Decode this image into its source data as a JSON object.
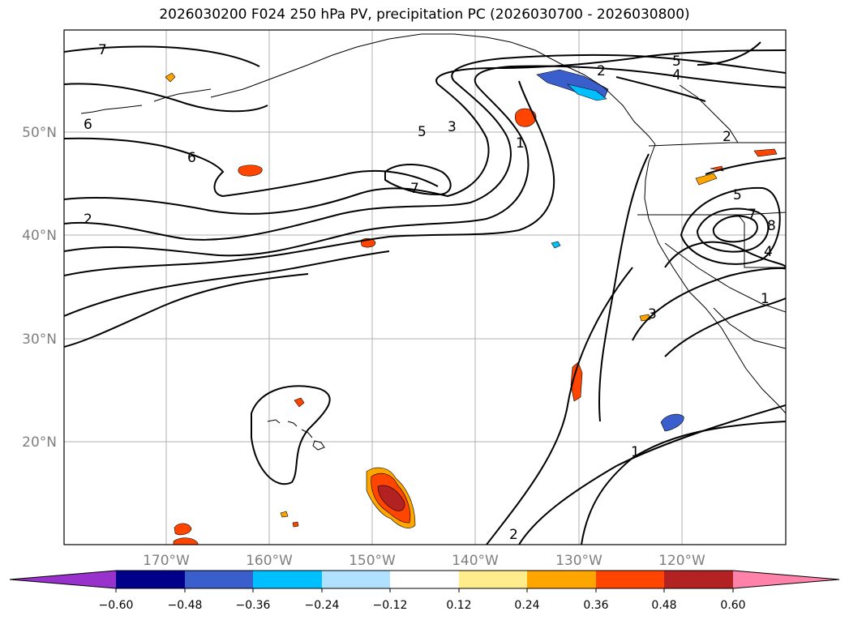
{
  "title": "2026030200 F024 250 hPa PV, precipitation PC (2026030700 - 2026030800)",
  "lat_labels": [
    "50°N",
    "40°N",
    "30°N",
    "20°N"
  ],
  "lon_labels": [
    "170°W",
    "160°W",
    "150°W",
    "140°W",
    "130°W",
    "120°W"
  ],
  "contour_labels": [
    "7",
    "6",
    "6",
    "2",
    "5",
    "3",
    "1",
    "7",
    "2",
    "5",
    "4",
    "2",
    "5",
    "7",
    "8",
    "4",
    "1",
    "3",
    "1",
    "2"
  ],
  "colorbar": {
    "ticks": [
      "−0.60",
      "−0.48",
      "−0.36",
      "−0.24",
      "−0.12",
      "0.12",
      "0.24",
      "0.36",
      "0.48",
      "0.60"
    ],
    "colors": {
      "under": "#9932cc",
      "c1": "#00008b",
      "c2": "#3a5fcd",
      "c3": "#00bfff",
      "c4": "#b0e2ff",
      "c5": "#ffffff",
      "c6": "#ffec8b",
      "c7": "#ffa500",
      "c8": "#ff4500",
      "c9": "#b22222",
      "over": "#ff82ab"
    }
  }
}
